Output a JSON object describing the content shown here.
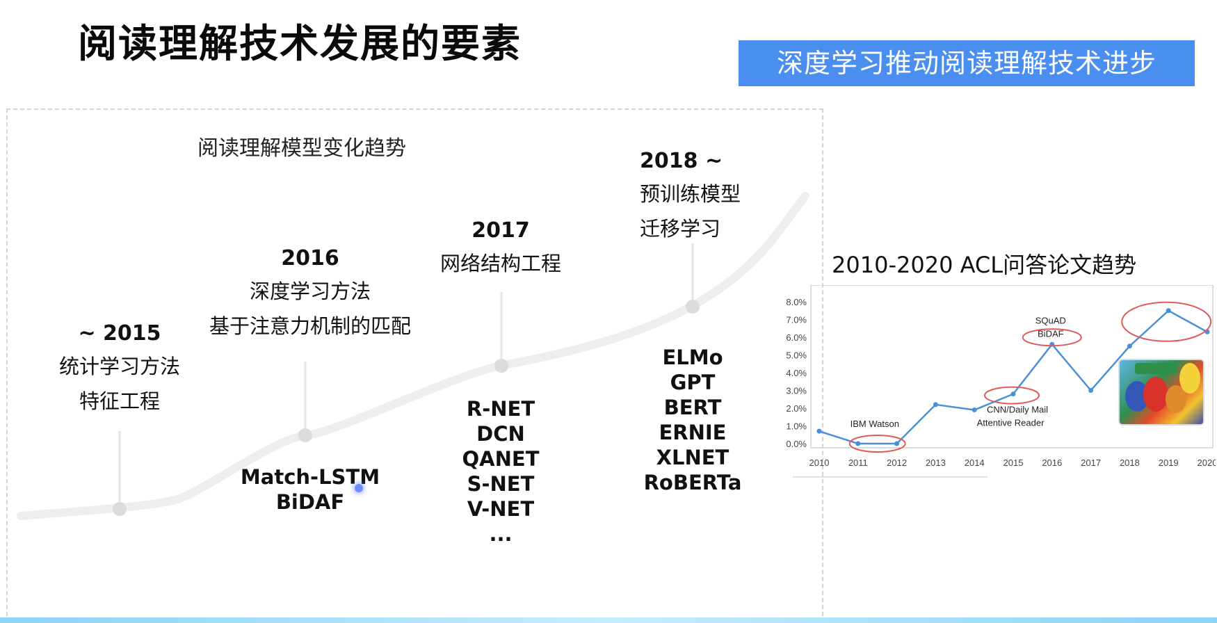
{
  "header": {
    "title": "阅读理解技术发展的要素",
    "banner": "深度学习推动阅读理解技术进步"
  },
  "timeline": {
    "heading": "阅读理解模型变化趋势",
    "stages": [
      {
        "year": "~ 2015",
        "lines": [
          "统计学习方法",
          "特征工程"
        ],
        "models": []
      },
      {
        "year": "2016",
        "lines": [
          "深度学习方法",
          "基于注意力机制的匹配"
        ],
        "models": [
          "Match-LSTM",
          "BiDAF"
        ]
      },
      {
        "year": "2017",
        "lines": [
          "网络结构工程"
        ],
        "models": [
          "R-NET",
          "DCN",
          "QANET",
          "S-NET",
          "V-NET",
          "..."
        ]
      },
      {
        "year": "2018 ~",
        "lines": [
          "预训练模型",
          "迁移学习"
        ],
        "models": [
          "ELMo",
          "GPT",
          "BERT",
          "ERNIE",
          "XLNET",
          "RoBERTa"
        ]
      }
    ]
  },
  "chart_data": {
    "type": "line",
    "title": "2010-2020 ACL问答论文趋势",
    "x": [
      "2010",
      "2011",
      "2012",
      "2013",
      "2014",
      "2015",
      "2016",
      "2017",
      "2018",
      "2019",
      "2020"
    ],
    "series": [
      {
        "values": [
          0.7,
          0.0,
          0.0,
          2.2,
          1.9,
          2.8,
          5.6,
          3.0,
          5.5,
          7.5,
          6.3
        ]
      }
    ],
    "yticks": [
      "0.0%",
      "1.0%",
      "2.0%",
      "3.0%",
      "4.0%",
      "5.0%",
      "6.0%",
      "7.0%",
      "8.0%"
    ],
    "ylim": [
      0,
      8
    ],
    "annotations": [
      {
        "text": "IBM Watson",
        "x": "2011"
      },
      {
        "text": "CNN/Daily Mail",
        "x": "2015"
      },
      {
        "text": "Attentive Reader",
        "x": "2015"
      },
      {
        "text": "SQuAD",
        "x": "2016"
      },
      {
        "text": "BiDAF",
        "x": "2016"
      }
    ],
    "highlighted": [
      "2011-2012",
      "2015",
      "2016",
      "2019"
    ],
    "line_color": "#4a90d9",
    "highlight_color": "#e05a5a",
    "grid": false
  }
}
